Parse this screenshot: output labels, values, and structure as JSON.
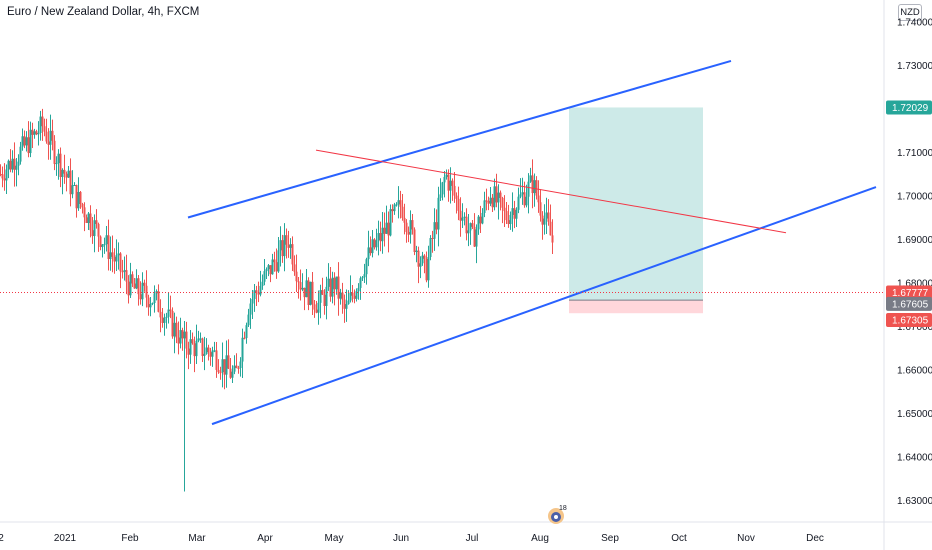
{
  "header": {
    "title": "Euro / New Zealand Dollar, 4h, FXCM",
    "currency": "NZD"
  },
  "logo": {
    "label": "18",
    "icon": "tradingview-mascot-icon"
  },
  "colors": {
    "up": "#26a69a",
    "down": "#ef5350",
    "channel": "#2962ff",
    "trendline": "#f23645",
    "target_zone": "#b2dfdb",
    "stop_zone": "#ffcdd2",
    "price_line": "#f23645",
    "target_badge": "#26a69a"
  },
  "chart_data": {
    "type": "candlestick",
    "title": "Euro / New Zealand Dollar, 4h, FXCM",
    "y_range": [
      1.625,
      1.745
    ],
    "x_ticks": [
      "2",
      "2021",
      "Feb",
      "Mar",
      "Apr",
      "May",
      "Jun",
      "Jul",
      "Aug",
      "Sep",
      "Oct",
      "Nov",
      "Dec"
    ],
    "y_ticks": [
      "1.63000",
      "1.64000",
      "1.65000",
      "1.66000",
      "1.67000",
      "1.68000",
      "1.69000",
      "1.70000",
      "1.71000",
      "1.72000",
      "1.73000",
      "1.74000"
    ],
    "price_anchors": [
      [
        "2",
        1.705
      ],
      [
        "2021",
        1.716
      ],
      [
        "mid-Jan",
        1.7
      ],
      [
        "late-Jan",
        1.687
      ],
      [
        "Feb",
        1.679
      ],
      [
        "mid-Feb",
        1.676
      ],
      [
        "late-Feb",
        1.666
      ],
      [
        "early-Mar",
        1.664
      ],
      [
        "mid-Mar",
        1.658
      ],
      [
        "late-Mar",
        1.675
      ],
      [
        "early-Apr",
        1.69
      ],
      [
        "mid-Apr",
        1.68
      ],
      [
        "late-Apr",
        1.675
      ],
      [
        "May",
        1.68
      ],
      [
        "mid-May",
        1.673
      ],
      [
        "late-May",
        1.685
      ],
      [
        "Jun",
        1.698
      ],
      [
        "mid-Jun",
        1.682
      ],
      [
        "late-Jun",
        1.705
      ],
      [
        "Jul",
        1.69
      ],
      [
        "mid-Jul",
        1.701
      ],
      [
        "late-Jul",
        1.695
      ],
      [
        "Aug",
        1.703
      ],
      [
        "mid-Aug",
        1.678
      ],
      [
        "late-Aug",
        1.6755
      ]
    ],
    "extremes": {
      "high": 1.734,
      "low": 1.632
    },
    "drawings": {
      "channel_upper": [
        [
          "late-Feb",
          1.695
        ],
        [
          "Oct",
          1.731
        ]
      ],
      "channel_lower": [
        [
          "early-Mar",
          1.6475
        ],
        [
          "Dec",
          1.702
        ]
      ],
      "trendline": [
        [
          "May",
          1.7105
        ],
        [
          "Nov",
          1.6915
        ]
      ],
      "position": {
        "entry": 1.676,
        "target": 1.7203,
        "stop": 1.673,
        "from": "mid-Aug",
        "to": "Oct"
      }
    },
    "price_labels": [
      {
        "value": "1.72029",
        "kind": "target"
      },
      {
        "value": "1.67777",
        "kind": "last"
      },
      {
        "value": "1.67605",
        "kind": "entry"
      },
      {
        "value": "1.67305",
        "kind": "stop"
      }
    ]
  }
}
